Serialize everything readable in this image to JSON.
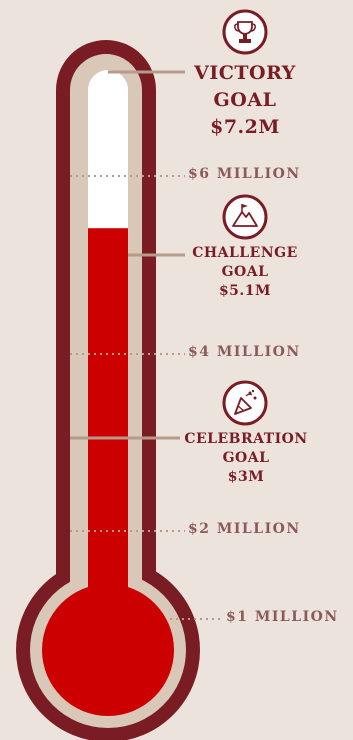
{
  "thermometer": {
    "fill_fraction_of_tube": 0.72,
    "colors": {
      "outer": "#7a1c24",
      "ring": "#d9c8b8",
      "fill": "#cc0000",
      "empty": "#ffffff",
      "background": "#ece4dc",
      "connector": "#b59c8a"
    }
  },
  "goals": [
    {
      "icon": "trophy-icon",
      "line1": "VICTORY",
      "line2": "GOAL",
      "amount": "$7.2M"
    },
    {
      "icon": "mountain-flag-icon",
      "line1": "CHALLENGE",
      "line2": "GOAL",
      "amount": "$5.1M"
    },
    {
      "icon": "party-popper-icon",
      "line1": "CELEBRATION",
      "line2": "GOAL",
      "amount": "$3M"
    }
  ],
  "milestones": [
    {
      "label": "$6 MILLION"
    },
    {
      "label": "$4 MILLION"
    },
    {
      "label": "$2 MILLION"
    },
    {
      "label": "$1 MILLION"
    }
  ]
}
